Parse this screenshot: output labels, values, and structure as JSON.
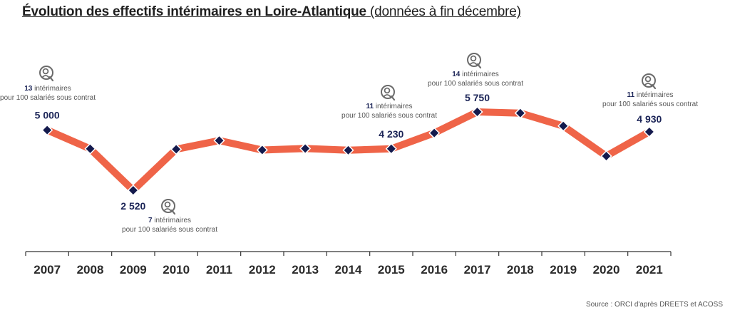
{
  "title": {
    "main": "Évolution des effectifs intérimaires en Loire-Atlantique",
    "sub": " (données à fin décembre)"
  },
  "source": "Source : ORCI d'après DREETS et ACOSS",
  "colors": {
    "line": "#ef6448",
    "marker": "#141a4d",
    "marker_stroke": "#ffffff",
    "axis": "#333333"
  },
  "chart_data": {
    "type": "line",
    "title": "Évolution des effectifs intérimaires en Loire-Atlantique",
    "categories": [
      "2007",
      "2008",
      "2009",
      "2010",
      "2011",
      "2012",
      "2013",
      "2014",
      "2015",
      "2016",
      "2017",
      "2018",
      "2019",
      "2020",
      "2021"
    ],
    "series": [
      {
        "values": [
          5000,
          4230,
          2520,
          4210,
          4570,
          4180,
          4240,
          4170,
          4230,
          4880,
          5750,
          5700,
          5170,
          3930,
          4930
        ]
      }
    ],
    "data_labels": [
      {
        "year": "2007",
        "text": "5 000"
      },
      {
        "year": "2009",
        "text": "2 520"
      },
      {
        "year": "2015",
        "text": "4 230"
      },
      {
        "year": "2017",
        "text": "5 750"
      },
      {
        "year": "2021",
        "text": "4 930"
      }
    ],
    "annotations": [
      {
        "year": "2007",
        "position": "above",
        "value": "13",
        "line1": " intérimaires",
        "line2": "pour 100 salariés sous contrat",
        "icon": "temp-worker-icon"
      },
      {
        "year": "2009",
        "position": "below",
        "value": "7",
        "line1": " intérimaires",
        "line2": "pour 100 salariés sous contrat",
        "icon": "temp-worker-icon"
      },
      {
        "year": "2015",
        "position": "above",
        "value": "11",
        "line1": " intérimaires",
        "line2": "pour 100 salariés sous contrat",
        "icon": "temp-worker-icon"
      },
      {
        "year": "2017",
        "position": "above",
        "value": "14",
        "line1": " intérimaires",
        "line2": "pour 100 salariés sous contrat",
        "icon": "temp-worker-icon"
      },
      {
        "year": "2021",
        "position": "above",
        "value": "11",
        "line1": " intérimaires",
        "line2": "pour 100 salariés sous contrat",
        "icon": "temp-worker-icon"
      }
    ],
    "grid": false,
    "legend": "none"
  }
}
